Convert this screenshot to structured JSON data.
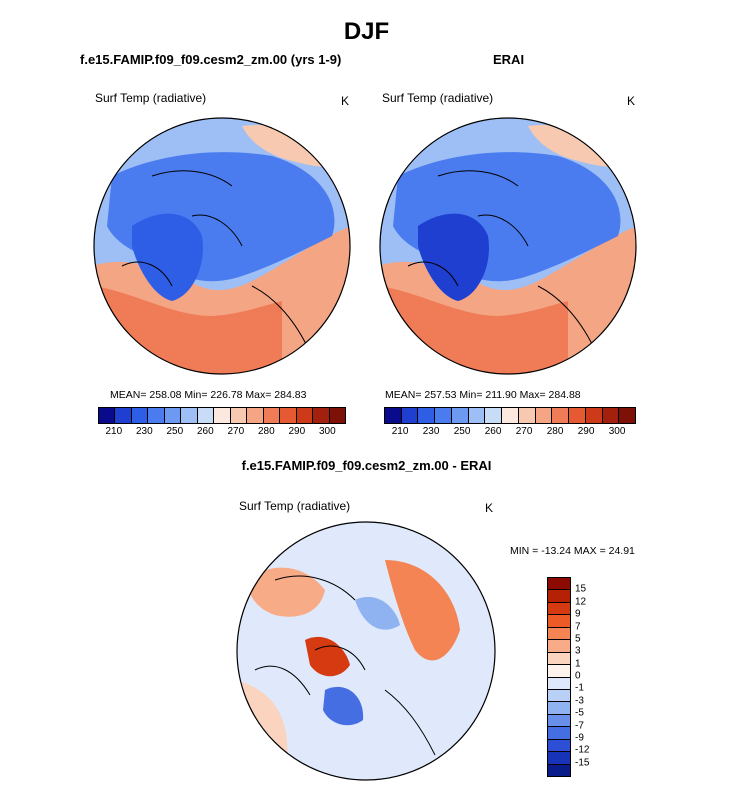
{
  "title": "DJF",
  "panel_left": {
    "case_name": "f.e15.FAMIP.f09_f09.cesm2_zm.00 (yrs 1-9)",
    "variable": "Surf Temp (radiative)",
    "units": "K",
    "stats": "MEAN= 258.08  Min= 226.78  Max= 284.83"
  },
  "panel_right": {
    "case_name": "ERAI",
    "variable": "Surf Temp (radiative)",
    "units": "K",
    "stats": "MEAN= 257.53  Min= 211.90  Max= 284.88"
  },
  "abs_colorbar": {
    "colors": [
      "#0a0a8c",
      "#1e3fd0",
      "#2f5ee6",
      "#4a7cf0",
      "#6c9af2",
      "#9dbff5",
      "#c8dbf7",
      "#fbe9df",
      "#f7c9b0",
      "#f5a583",
      "#ef7c57",
      "#e55a33",
      "#cc3a1a",
      "#a3200e",
      "#7d1108"
    ],
    "tick_labels": [
      "210",
      "230",
      "250",
      "260",
      "270",
      "280",
      "290",
      "300"
    ]
  },
  "panel_diff": {
    "case_name": "f.e15.FAMIP.f09_f09.cesm2_zm.00 - ERAI",
    "variable": "Surf Temp (radiative)",
    "units": "K",
    "stats": "MIN = -13.24 MAX =  24.91"
  },
  "diff_colorbar": {
    "colors": [
      "#8c0a00",
      "#b52105",
      "#d53a10",
      "#ec5a26",
      "#f48453",
      "#f7ab86",
      "#fad4be",
      "#fdf3ec",
      "#dfe9fb",
      "#b9d0f7",
      "#8fb2f1",
      "#6890ea",
      "#456ee2",
      "#2c4fd6",
      "#1733b8",
      "#0a1b8a"
    ],
    "tick_labels": [
      "15",
      "12",
      "9",
      "7",
      "5",
      "3",
      "1",
      "0",
      "-1",
      "-3",
      "-5",
      "-7",
      "-9",
      "-12",
      "-15"
    ]
  }
}
